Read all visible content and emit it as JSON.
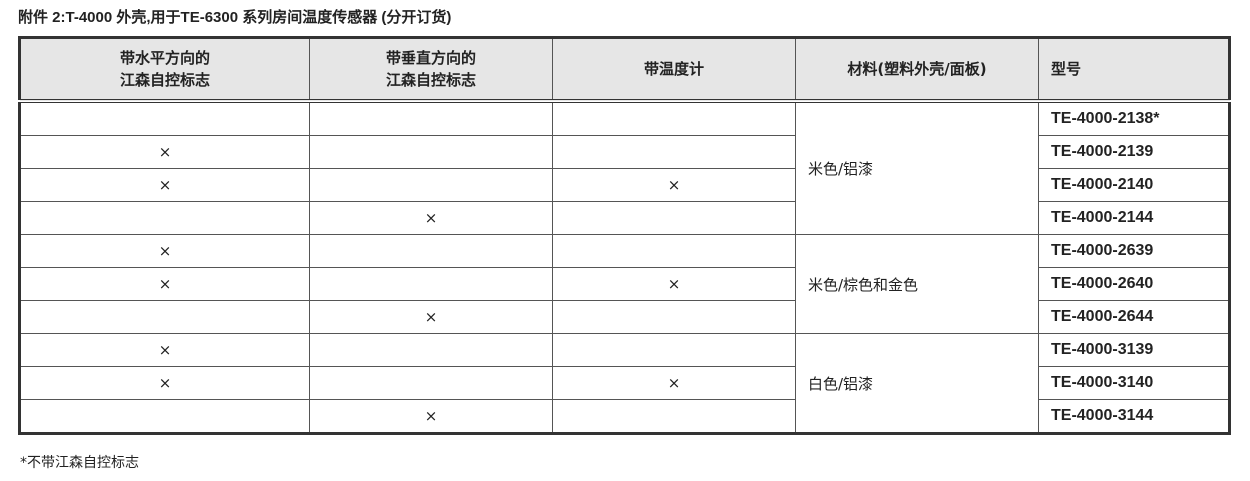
{
  "title": "附件 2:T-4000 外壳,用于TE-6300 系列房间温度传感器 (分开订货)",
  "headers": [
    "带水平方向的\n江森自控标志",
    "带垂直方向的\n江森自控标志",
    "带温度计",
    "材料(塑料外壳/面板)",
    "型号"
  ],
  "mark": "×",
  "groups": [
    {
      "material": "米色/铝漆",
      "rows": [
        {
          "h": false,
          "v": false,
          "t": false,
          "model": "TE-4000-2138*"
        },
        {
          "h": true,
          "v": false,
          "t": false,
          "model": "TE-4000-2139"
        },
        {
          "h": true,
          "v": false,
          "t": true,
          "model": "TE-4000-2140"
        },
        {
          "h": false,
          "v": true,
          "t": false,
          "model": "TE-4000-2144"
        }
      ]
    },
    {
      "material": "米色/棕色和金色",
      "rows": [
        {
          "h": true,
          "v": false,
          "t": false,
          "model": "TE-4000-2639"
        },
        {
          "h": true,
          "v": false,
          "t": true,
          "model": "TE-4000-2640"
        },
        {
          "h": false,
          "v": true,
          "t": false,
          "model": "TE-4000-2644"
        }
      ]
    },
    {
      "material": "白色/铝漆",
      "rows": [
        {
          "h": true,
          "v": false,
          "t": false,
          "model": "TE-4000-3139"
        },
        {
          "h": true,
          "v": false,
          "t": true,
          "model": "TE-4000-3140"
        },
        {
          "h": false,
          "v": true,
          "t": false,
          "model": "TE-4000-3144"
        }
      ]
    }
  ],
  "footnote": "*不带江森自控标志"
}
